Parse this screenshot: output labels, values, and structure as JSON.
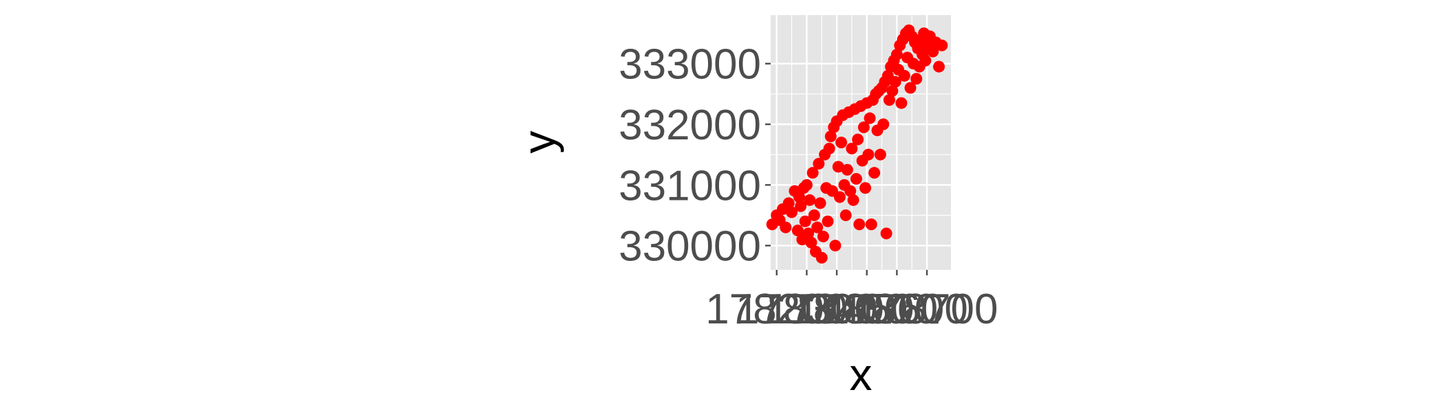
{
  "chart_data": {
    "type": "scatter",
    "title": "",
    "xlabel": "x",
    "ylabel": "y",
    "x_ticks": [
      178200,
      178300,
      178400,
      178500,
      178600,
      178700
    ],
    "x_tick_labels": [
      "178200",
      "178300",
      "178400",
      "178500",
      "178600",
      "178700"
    ],
    "y_ticks": [
      330000,
      331000,
      332000,
      333000
    ],
    "y_tick_labels": [
      "330000",
      "331000",
      "332000",
      "333000"
    ],
    "xlim": [
      178180,
      178780
    ],
    "ylim": [
      329600,
      333800
    ],
    "grid": true,
    "legend": "none",
    "colors": {
      "points": "#ff0000",
      "panel": "#e5e5e5",
      "grid": "#ffffff",
      "ticks": "#4d4d4d",
      "axis_title": "#000000"
    },
    "series": [
      {
        "points": [
          [
            178185,
            330350
          ],
          [
            178200,
            330500
          ],
          [
            178210,
            330420
          ],
          [
            178220,
            330600
          ],
          [
            178230,
            330300
          ],
          [
            178240,
            330700
          ],
          [
            178250,
            330550
          ],
          [
            178260,
            330900
          ],
          [
            178270,
            330250
          ],
          [
            178275,
            330800
          ],
          [
            178280,
            330650
          ],
          [
            178285,
            330100
          ],
          [
            178290,
            330950
          ],
          [
            178295,
            330400
          ],
          [
            178300,
            331000
          ],
          [
            178305,
            330200
          ],
          [
            178310,
            330750
          ],
          [
            178315,
            330050
          ],
          [
            178320,
            331200
          ],
          [
            178325,
            330500
          ],
          [
            178330,
            329900
          ],
          [
            178335,
            330300
          ],
          [
            178340,
            331350
          ],
          [
            178345,
            330700
          ],
          [
            178350,
            329800
          ],
          [
            178355,
            330150
          ],
          [
            178360,
            331500
          ],
          [
            178365,
            330950
          ],
          [
            178370,
            330400
          ],
          [
            178375,
            331600
          ],
          [
            178380,
            331800
          ],
          [
            178385,
            330900
          ],
          [
            178390,
            331950
          ],
          [
            178395,
            330000
          ],
          [
            178400,
            332050
          ],
          [
            178405,
            331300
          ],
          [
            178410,
            330800
          ],
          [
            178415,
            331700
          ],
          [
            178420,
            332150
          ],
          [
            178425,
            331000
          ],
          [
            178430,
            330500
          ],
          [
            178435,
            331250
          ],
          [
            178440,
            332200
          ],
          [
            178445,
            330900
          ],
          [
            178450,
            331600
          ],
          [
            178455,
            330750
          ],
          [
            178460,
            332250
          ],
          [
            178465,
            331100
          ],
          [
            178470,
            331750
          ],
          [
            178475,
            330350
          ],
          [
            178480,
            332300
          ],
          [
            178485,
            331400
          ],
          [
            178490,
            331950
          ],
          [
            178495,
            330950
          ],
          [
            178500,
            332350
          ],
          [
            178505,
            331500
          ],
          [
            178510,
            332100
          ],
          [
            178515,
            330350
          ],
          [
            178520,
            332400
          ],
          [
            178525,
            331200
          ],
          [
            178530,
            332500
          ],
          [
            178535,
            331900
          ],
          [
            178540,
            332550
          ],
          [
            178545,
            331500
          ],
          [
            178550,
            332600
          ],
          [
            178555,
            332000
          ],
          [
            178560,
            332700
          ],
          [
            178565,
            330200
          ],
          [
            178570,
            332800
          ],
          [
            178575,
            332400
          ],
          [
            178580,
            332950
          ],
          [
            178585,
            332550
          ],
          [
            178590,
            333050
          ],
          [
            178595,
            332700
          ],
          [
            178600,
            333150
          ],
          [
            178605,
            332900
          ],
          [
            178610,
            333300
          ],
          [
            178615,
            332350
          ],
          [
            178620,
            333400
          ],
          [
            178625,
            332800
          ],
          [
            178630,
            333500
          ],
          [
            178635,
            333100
          ],
          [
            178640,
            333550
          ],
          [
            178645,
            332600
          ],
          [
            178650,
            333450
          ],
          [
            178655,
            333000
          ],
          [
            178660,
            333350
          ],
          [
            178665,
            332750
          ],
          [
            178670,
            333250
          ],
          [
            178675,
            332950
          ],
          [
            178680,
            333400
          ],
          [
            178685,
            333150
          ],
          [
            178690,
            333500
          ],
          [
            178695,
            333050
          ],
          [
            178700,
            333300
          ],
          [
            178710,
            333450
          ],
          [
            178720,
            333200
          ],
          [
            178730,
            333350
          ],
          [
            178740,
            332950
          ],
          [
            178750,
            333300
          ]
        ]
      }
    ]
  }
}
